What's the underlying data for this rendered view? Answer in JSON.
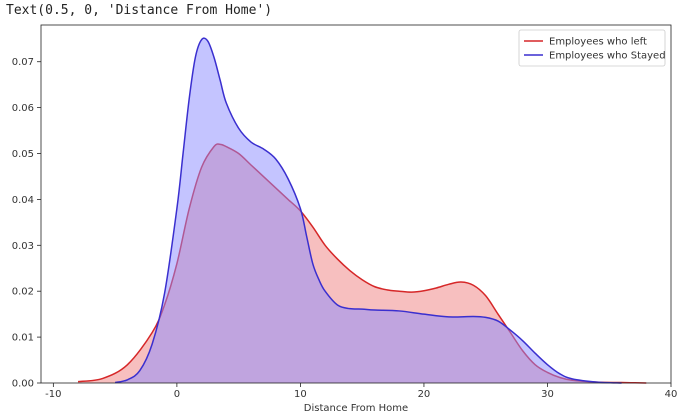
{
  "console_output": "Text(0.5, 0, 'Distance From Home')",
  "chart_data": {
    "type": "area",
    "xlabel": "Distance From Home",
    "ylabel": "",
    "xlim": [
      -11,
      40
    ],
    "ylim": [
      0,
      0.078
    ],
    "xticks": [
      -10,
      0,
      10,
      20,
      30,
      40
    ],
    "yticks": [
      0.0,
      0.01,
      0.02,
      0.03,
      0.04,
      0.05,
      0.06,
      0.07
    ],
    "ytick_labels": [
      "0.00",
      "0.01",
      "0.02",
      "0.03",
      "0.04",
      "0.05",
      "0.06",
      "0.07"
    ],
    "legend_position": "top-right",
    "grid": false,
    "series": [
      {
        "name": "Employees who left",
        "color": "#d62728",
        "fill": "#f08080",
        "x": [
          -8,
          -6,
          -4,
          -2,
          -1,
          0,
          1,
          2,
          3,
          3.5,
          4,
          5,
          6,
          7,
          8,
          9,
          10,
          11,
          12,
          13,
          14,
          15,
          16,
          17,
          18,
          19,
          20,
          21,
          22,
          23,
          24,
          25,
          26,
          27,
          28,
          29,
          30,
          31,
          32,
          34,
          36,
          38
        ],
        "values": [
          0.0003,
          0.001,
          0.004,
          0.011,
          0.017,
          0.026,
          0.038,
          0.047,
          0.0515,
          0.052,
          0.0515,
          0.05,
          0.0475,
          0.045,
          0.0425,
          0.04,
          0.0375,
          0.034,
          0.03,
          0.027,
          0.0245,
          0.0225,
          0.021,
          0.0203,
          0.02,
          0.0198,
          0.0201,
          0.0207,
          0.0215,
          0.022,
          0.0213,
          0.019,
          0.015,
          0.011,
          0.007,
          0.004,
          0.0023,
          0.0012,
          0.0006,
          0.0002,
          0.0001,
          0.0
        ]
      },
      {
        "name": "Employees who Stayed",
        "color": "#3a2fcf",
        "fill": "#8a8aff",
        "x": [
          -5,
          -4,
          -3,
          -2,
          -1,
          0,
          0.5,
          1,
          1.5,
          2,
          2.5,
          3,
          3.5,
          4,
          5,
          6,
          7,
          8,
          9,
          10,
          10.5,
          11,
          11.5,
          12,
          13,
          14,
          15,
          16,
          18,
          20,
          22,
          24,
          25,
          26,
          27,
          28,
          29,
          30,
          31,
          32,
          34,
          36
        ],
        "values": [
          0.0001,
          0.0007,
          0.0027,
          0.0085,
          0.0195,
          0.038,
          0.05,
          0.062,
          0.071,
          0.0748,
          0.0745,
          0.071,
          0.066,
          0.061,
          0.0555,
          0.0525,
          0.051,
          0.0488,
          0.0445,
          0.038,
          0.032,
          0.026,
          0.0225,
          0.02,
          0.017,
          0.0162,
          0.0161,
          0.0159,
          0.0157,
          0.015,
          0.0144,
          0.0145,
          0.0143,
          0.0135,
          0.0115,
          0.0092,
          0.0065,
          0.004,
          0.002,
          0.0009,
          0.0002,
          0.0
        ]
      }
    ]
  }
}
